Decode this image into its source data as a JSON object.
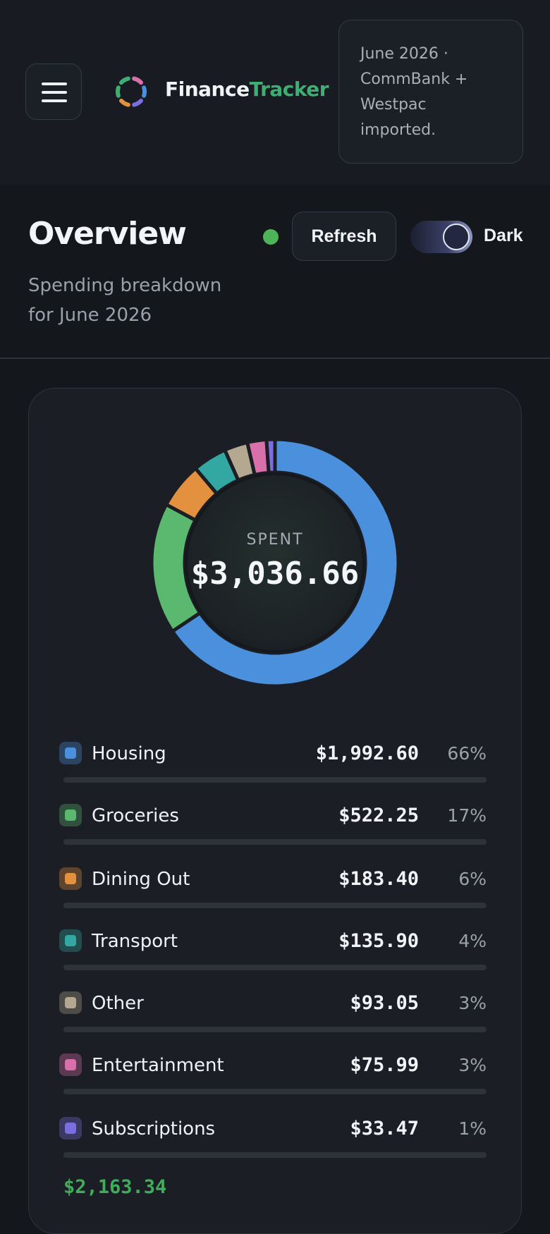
{
  "header": {
    "brand_part1": "Finance",
    "brand_part2": "Tracker",
    "import_note": "June 2026 · CommBank + Westpac imported."
  },
  "overview": {
    "title": "Overview",
    "subtitle": "Spending breakdown for June 2026",
    "refresh_label": "Refresh",
    "theme_label": "Dark",
    "theme_dark": true,
    "status_color": "#4db558"
  },
  "summary": {
    "center_label": "SPENT",
    "center_value": "$3,036.66",
    "below_value": "$2,163.34"
  },
  "chart_data": {
    "type": "pie",
    "categories": [
      "Housing",
      "Groceries",
      "Dining Out",
      "Transport",
      "Other",
      "Entertainment",
      "Subscriptions"
    ],
    "values": [
      1992.6,
      522.25,
      183.4,
      135.9,
      93.05,
      75.99,
      33.47
    ],
    "colors": [
      "#4a90dd",
      "#5bb86f",
      "#e3913f",
      "#33a8a3",
      "#b5a890",
      "#d970ac",
      "#7a6ee0"
    ],
    "total": 3036.66
  },
  "categories": [
    {
      "name": "Housing",
      "amount": "$1,992.60",
      "pct": "66%",
      "value": 1992.6,
      "color": "#4a90dd"
    },
    {
      "name": "Groceries",
      "amount": "$522.25",
      "pct": "17%",
      "value": 522.25,
      "color": "#5bb86f"
    },
    {
      "name": "Dining Out",
      "amount": "$183.40",
      "pct": "6%",
      "value": 183.4,
      "color": "#e3913f"
    },
    {
      "name": "Transport",
      "amount": "$135.90",
      "pct": "4%",
      "value": 135.9,
      "color": "#33a8a3"
    },
    {
      "name": "Other",
      "amount": "$93.05",
      "pct": "3%",
      "value": 93.05,
      "color": "#b5a890"
    },
    {
      "name": "Entertainment",
      "amount": "$75.99",
      "pct": "3%",
      "value": 75.99,
      "color": "#d970ac"
    },
    {
      "name": "Subscriptions",
      "amount": "$33.47",
      "pct": "1%",
      "value": 33.47,
      "color": "#7a6ee0"
    }
  ],
  "logo_colors": [
    "#3fae72",
    "#4a90dd",
    "#e3913f",
    "#d970ac",
    "#7a6ee0"
  ]
}
